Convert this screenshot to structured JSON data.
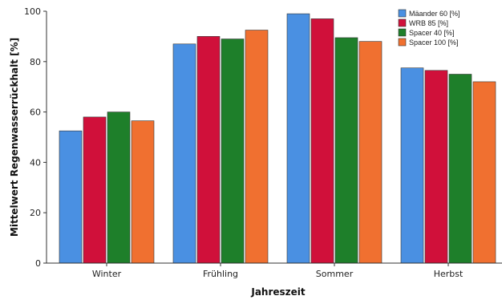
{
  "chart_data": {
    "type": "bar",
    "categories": [
      "Winter",
      "Frühling",
      "Sommer",
      "Herbst"
    ],
    "series": [
      {
        "name": "Mäander 60 [%]",
        "color": "#4a90e2",
        "values": [
          52.5,
          87,
          99,
          77.5
        ]
      },
      {
        "name": "WRB 85 [%]",
        "color": "#d0103a",
        "values": [
          58,
          90,
          97,
          76.5
        ]
      },
      {
        "name": "Spacer 40 [%]",
        "color": "#1e7f2a",
        "values": [
          60,
          89,
          89.5,
          75
        ]
      },
      {
        "name": "Spacer 100 [%]",
        "color": "#f07030",
        "values": [
          56.5,
          92.5,
          88,
          72
        ]
      }
    ],
    "xlabel": "Jahreszeit",
    "ylabel": "Mittelwert Regenwasserrückhalt [%]",
    "ylim": [
      0,
      100
    ],
    "yticks": [
      0,
      20,
      40,
      60,
      80,
      100
    ],
    "grid": false,
    "legend_position": "top-right"
  }
}
